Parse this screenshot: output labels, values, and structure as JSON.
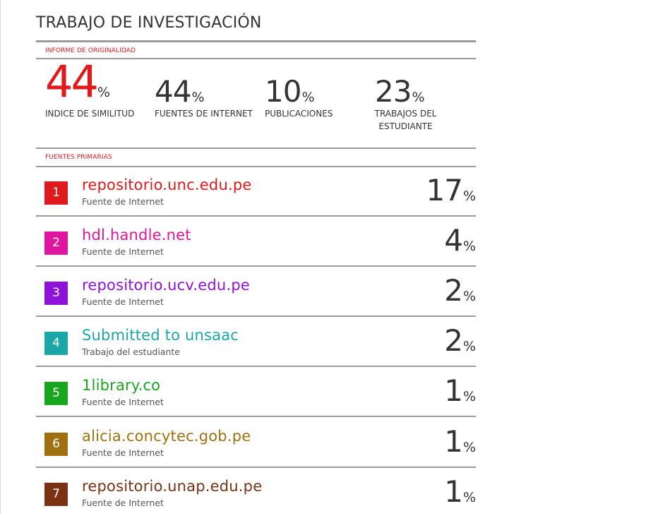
{
  "report": {
    "title": "TRABAJO DE INVESTIGACIÓN",
    "originality_label": "INFORME DE ORIGINALIDAD",
    "primary_sources_label": "FUENTES PRIMARIAS"
  },
  "stats": {
    "similarity": {
      "value": "44",
      "unit": "%",
      "label": "INDICE DE SIMILITUD",
      "color": "#e0191c"
    },
    "internet": {
      "value": "44",
      "unit": "%",
      "label": "FUENTES DE INTERNET"
    },
    "publications": {
      "value": "10",
      "unit": "%",
      "label": "PUBLICACIONES"
    },
    "students": {
      "value": "23",
      "unit": "%",
      "label": "TRABAJOS DEL ESTUDIANTE"
    }
  },
  "sources": [
    {
      "rank": "1",
      "name": "repositorio.unc.edu.pe",
      "type": "Fuente de Internet",
      "percent": "17",
      "unit": "%",
      "color": "#e0191c"
    },
    {
      "rank": "2",
      "name": "hdl.handle.net",
      "type": "Fuente de Internet",
      "percent": "4",
      "unit": "%",
      "color": "#e0159f"
    },
    {
      "rank": "3",
      "name": "repositorio.ucv.edu.pe",
      "type": "Fuente de Internet",
      "percent": "2",
      "unit": "%",
      "color": "#8f12d8"
    },
    {
      "rank": "4",
      "name": "Submitted to unsaac",
      "type": "Trabajo del estudiante",
      "percent": "2",
      "unit": "%",
      "color": "#1aa7a7"
    },
    {
      "rank": "5",
      "name": "1library.co",
      "type": "Fuente de Internet",
      "percent": "1",
      "unit": "%",
      "color": "#17a61c"
    },
    {
      "rank": "6",
      "name": "alicia.concytec.gob.pe",
      "type": "Fuente de Internet",
      "percent": "1",
      "unit": "%",
      "color": "#a0700f"
    },
    {
      "rank": "7",
      "name": "repositorio.unap.edu.pe",
      "type": "Fuente de Internet",
      "percent": "1",
      "unit": "%",
      "color": "#7a3212"
    }
  ]
}
